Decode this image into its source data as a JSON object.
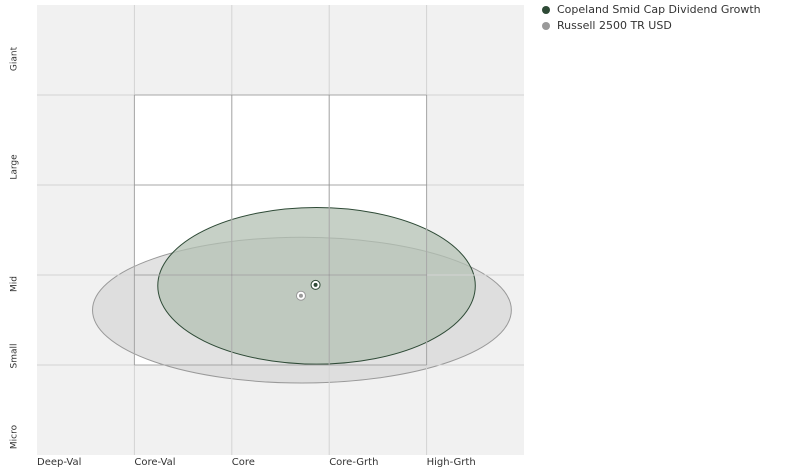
{
  "chart_data": {
    "type": "ownership-zone",
    "xlim": [
      0,
      5
    ],
    "ylim": [
      0,
      5
    ],
    "xticks": [
      {
        "value": 0,
        "label": "Deep-Val"
      },
      {
        "value": 1,
        "label": "Core-Val"
      },
      {
        "value": 2,
        "label": "Core"
      },
      {
        "value": 3,
        "label": "Core-Grth"
      },
      {
        "value": 4,
        "label": "High-Grth"
      }
    ],
    "yticks": [
      {
        "value": 0.2,
        "label": "Micro"
      },
      {
        "value": 1.1,
        "label": "Small"
      },
      {
        "value": 1.9,
        "label": "Mid"
      },
      {
        "value": 3.2,
        "label": "Large"
      },
      {
        "value": 4.4,
        "label": "Giant"
      }
    ],
    "xgrid": [
      1,
      2,
      3,
      4
    ],
    "ygrid": [
      1,
      2,
      3,
      4
    ],
    "style_box": {
      "x": [
        1,
        4
      ],
      "y": [
        1,
        4
      ]
    },
    "series": [
      {
        "name": "Copeland Smid Cap Dividend Growth",
        "color": "#2e4a36",
        "fill": "#b3c0b3",
        "x": 2.86,
        "y": 1.89,
        "zone": {
          "cx": 2.87,
          "cy": 1.88,
          "rx": 1.63,
          "ry": 0.87
        }
      },
      {
        "name": "Russell 2500 TR USD",
        "color": "#999999",
        "fill": "#d6d6d6",
        "x": 2.71,
        "y": 1.77,
        "zone": {
          "cx": 2.72,
          "cy": 1.61,
          "rx": 2.15,
          "ry": 0.81
        }
      }
    ]
  }
}
